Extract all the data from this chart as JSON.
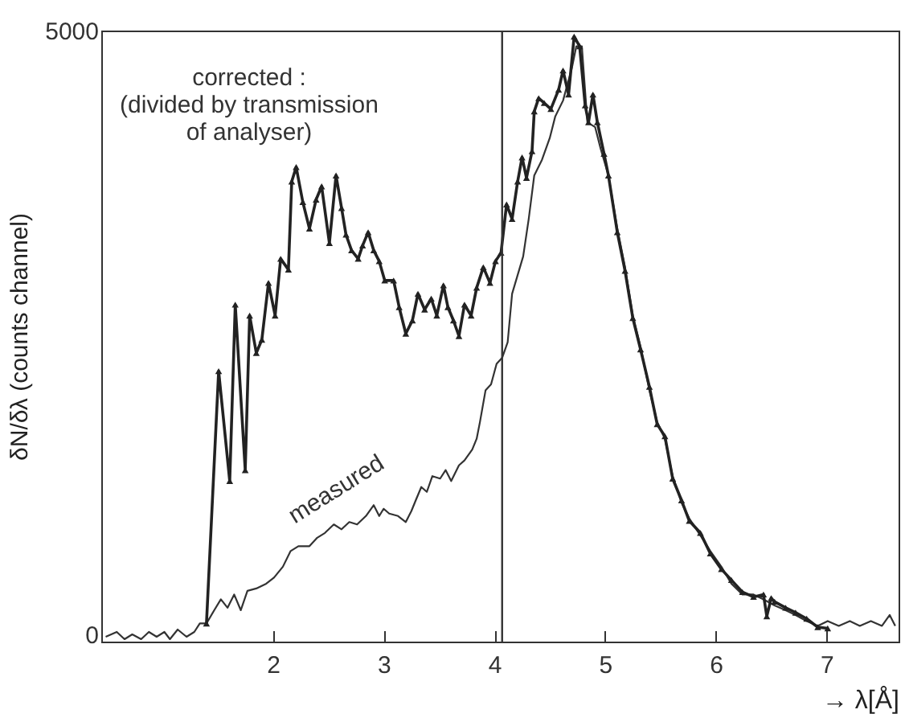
{
  "chart_data": {
    "type": "line",
    "xlabel": "→ λ[Å]",
    "ylabel": "δN/δλ (counts channel)",
    "xlim": [
      0.45,
      7.65
    ],
    "ylim": [
      -60,
      5000
    ],
    "xticks": [
      2,
      3,
      4,
      5,
      6,
      7
    ],
    "yticks": [
      0,
      5000
    ],
    "grid": false,
    "annotations": [
      "corrected :\n(divided by transmission\nof analyser)",
      "measured"
    ],
    "ref_lines": [
      {
        "axis": "x",
        "value": 4.07,
        "color": "#333333"
      }
    ],
    "series": [
      {
        "color": "#333333",
        "marker": "none",
        "x": [
          0.49,
          0.59,
          0.66,
          0.73,
          0.81,
          0.88,
          0.95,
          1.02,
          1.07,
          1.14,
          1.22,
          1.29,
          1.34,
          1.4,
          1.47,
          1.53,
          1.59,
          1.65,
          1.71,
          1.77,
          1.85,
          1.94,
          2.01,
          2.09,
          2.16,
          2.23,
          2.33,
          2.4,
          2.47,
          2.55,
          2.62,
          2.69,
          2.76,
          2.84,
          2.91,
          2.96,
          3.0,
          3.05,
          3.13,
          3.2,
          3.25,
          3.29,
          3.34,
          3.39,
          3.44,
          3.51,
          3.56,
          3.61,
          3.68,
          3.73,
          3.8,
          3.84,
          3.87,
          3.92,
          3.97,
          4.02,
          4.07,
          4.12,
          4.16,
          4.26,
          4.31,
          4.36,
          4.43,
          4.5,
          4.55,
          4.62,
          4.7,
          4.74,
          4.79,
          4.84,
          4.91,
          4.96,
          5.03,
          5.11,
          5.18,
          5.25,
          5.32,
          5.4,
          5.47,
          5.54,
          5.61,
          5.69,
          5.76,
          5.86,
          5.95,
          6.05,
          6.14,
          6.24,
          6.34,
          6.43,
          6.53,
          6.63,
          6.72,
          6.82,
          6.92,
          7.01,
          7.11,
          7.21,
          7.3,
          7.4,
          7.5,
          7.57,
          7.62
        ],
        "values": [
          -20,
          20,
          -40,
          0,
          -40,
          20,
          -20,
          20,
          -40,
          40,
          -20,
          20,
          90,
          90,
          200,
          290,
          220,
          330,
          200,
          360,
          380,
          420,
          470,
          560,
          690,
          730,
          730,
          800,
          840,
          910,
          870,
          930,
          910,
          980,
          1070,
          980,
          1040,
          1000,
          980,
          930,
          1020,
          1110,
          1220,
          1180,
          1310,
          1290,
          1360,
          1270,
          1400,
          1440,
          1530,
          1620,
          1760,
          2020,
          2070,
          2240,
          2290,
          2420,
          2820,
          3130,
          3440,
          3800,
          3930,
          4110,
          4290,
          4420,
          4690,
          4870,
          4870,
          4240,
          4200,
          4020,
          3800,
          3360,
          3040,
          2640,
          2380,
          2020,
          1760,
          1620,
          1310,
          1090,
          960,
          820,
          690,
          560,
          420,
          330,
          330,
          290,
          240,
          200,
          160,
          110,
          70,
          110,
          70,
          110,
          70,
          110,
          70,
          160,
          70
        ]
      },
      {
        "color": "#222222",
        "marker": "triangle",
        "x": [
          1.4,
          1.51,
          1.61,
          1.66,
          1.75,
          1.79,
          1.85,
          1.9,
          1.96,
          2.02,
          2.07,
          2.14,
          2.17,
          2.21,
          2.27,
          2.33,
          2.39,
          2.44,
          2.51,
          2.57,
          2.62,
          2.66,
          2.71,
          2.77,
          2.81,
          2.86,
          2.91,
          2.96,
          3.01,
          3.09,
          3.14,
          3.2,
          3.26,
          3.31,
          3.37,
          3.43,
          3.48,
          3.54,
          3.58,
          3.63,
          3.68,
          3.73,
          3.79,
          3.84,
          3.9,
          3.96,
          4.01,
          4.06,
          4.11,
          4.16,
          4.21,
          4.25,
          4.29,
          4.34,
          4.36,
          4.4,
          4.45,
          4.51,
          4.58,
          4.62,
          4.67,
          4.72,
          4.77,
          4.82,
          4.85,
          4.89,
          4.93,
          4.99,
          5.03,
          5.11,
          5.18,
          5.25,
          5.32,
          5.4,
          5.47,
          5.54,
          5.61,
          5.69,
          5.76,
          5.86,
          5.95,
          6.05,
          6.14,
          6.24,
          6.34,
          6.43,
          6.46,
          6.5,
          6.53,
          6.63,
          6.72,
          6.82,
          6.92,
          7.01
        ],
        "values": [
          90,
          2180,
          1270,
          2730,
          1360,
          2640,
          2330,
          2440,
          2910,
          2640,
          3110,
          3020,
          3750,
          3870,
          3580,
          3360,
          3600,
          3710,
          3240,
          3800,
          3530,
          3310,
          3180,
          3110,
          3220,
          3330,
          3180,
          3090,
          2930,
          2930,
          2710,
          2490,
          2600,
          2820,
          2690,
          2780,
          2640,
          2890,
          2710,
          2600,
          2470,
          2730,
          2640,
          2870,
          3040,
          2910,
          3090,
          3160,
          3560,
          3440,
          3750,
          3950,
          3780,
          4000,
          4330,
          4440,
          4400,
          4350,
          4510,
          4670,
          4470,
          4950,
          4870,
          4380,
          4240,
          4470,
          4240,
          3980,
          3800,
          3330,
          3010,
          2620,
          2360,
          2050,
          1740,
          1640,
          1290,
          1110,
          940,
          840,
          670,
          540,
          450,
          350,
          310,
          330,
          150,
          300,
          270,
          220,
          180,
          130,
          60,
          50
        ]
      }
    ]
  }
}
